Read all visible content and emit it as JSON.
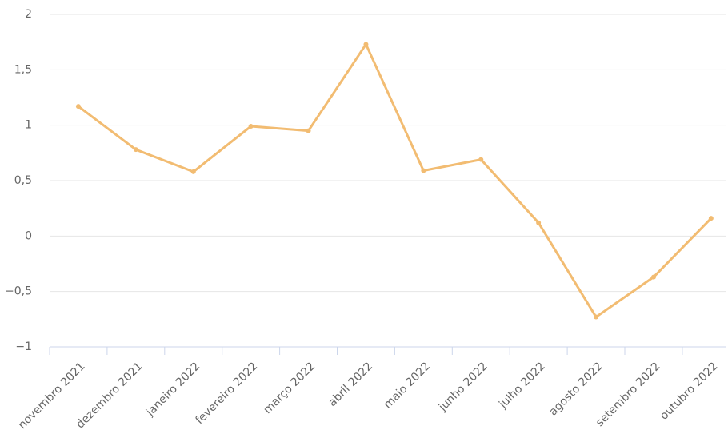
{
  "chart_data": {
    "type": "line",
    "categories": [
      "novembro 2021",
      "dezembro 2021",
      "janeiro 2022",
      "fevereiro 2022",
      "março 2022",
      "abril 2022",
      "maio 2022",
      "junho 2022",
      "julho 2022",
      "agosto 2022",
      "setembro 2022",
      "outubro 2022"
    ],
    "series": [
      {
        "color": "#f2bc72",
        "values": [
          1.17,
          0.78,
          0.58,
          0.99,
          0.95,
          1.73,
          0.59,
          0.69,
          0.12,
          -0.73,
          -0.37,
          0.16
        ]
      }
    ],
    "ylim": [
      -1,
      2
    ],
    "yticks": [
      {
        "value": -1,
        "label": "−1"
      },
      {
        "value": -0.5,
        "label": "−0,5"
      },
      0,
      {
        "value": 0.5,
        "label": "0,5"
      },
      1,
      {
        "value": 1.5,
        "label": "1,5"
      },
      2
    ],
    "grid": true
  }
}
